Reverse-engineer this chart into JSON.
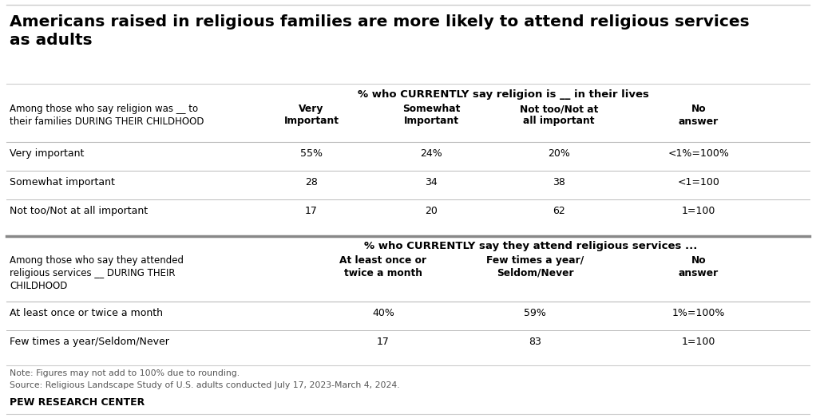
{
  "title": "Americans raised in religious families are more likely to attend religious services\nas adults",
  "section1_header": "% who CURRENTLY say religion is __ in their lives",
  "section1_col_header_label": "Among those who say religion was __ to\ntheir families DURING THEIR CHILDHOOD",
  "section1_col_headers": [
    "Very\nImportant",
    "Somewhat\nImportant",
    "Not too/Not at\nall important",
    "No\nanswer"
  ],
  "section1_rows": [
    {
      "label": "Very important",
      "values": [
        "55%",
        "24%",
        "20%",
        "<1%=100%"
      ]
    },
    {
      "label": "Somewhat important",
      "values": [
        "28",
        "34",
        "38",
        "<1=100"
      ]
    },
    {
      "label": "Not too/Not at all important",
      "values": [
        "17",
        "20",
        "62",
        "1=100"
      ]
    }
  ],
  "section2_header": "% who CURRENTLY say they attend religious services ...",
  "section2_col_header_label": "Among those who say they attended\nreligious services __ DURING THEIR\nCHILDHOOD",
  "section2_col_headers": [
    "At least once or\ntwice a month",
    "Few times a year/\nSeldom/Never",
    "No\nanswer"
  ],
  "section2_rows": [
    {
      "label": "At least once or twice a month",
      "values": [
        "40%",
        "59%",
        "1%=100%"
      ]
    },
    {
      "label": "Few times a year/Seldom/Never",
      "values": [
        "17",
        "83",
        "1=100"
      ]
    }
  ],
  "note": "Note: Figures may not add to 100% due to rounding.",
  "source": "Source: Religious Landscape Study of U.S. adults conducted July 17, 2023-March 4, 2024.",
  "footer": "PEW RESEARCH CENTER",
  "bg_color": "#ffffff",
  "text_color": "#000000",
  "gray_line_color": "#bbbbbb",
  "thick_line_color": "#888888",
  "separator_color": "#cccccc",
  "note_color": "#555555"
}
